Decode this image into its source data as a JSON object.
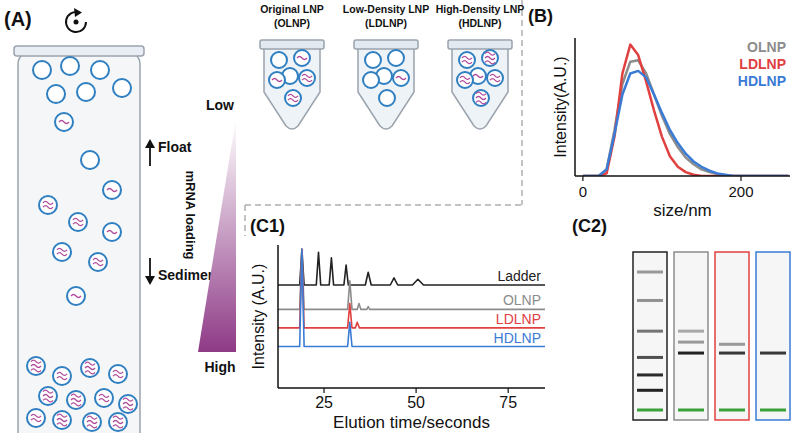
{
  "diagram": {
    "panel": "(A)",
    "arrows": {
      "up": "Float",
      "down": "Sediment"
    },
    "gradient": {
      "label": "mRNA loading",
      "top": "Low",
      "bottom": "High"
    },
    "tubes": [
      {
        "title": "Original LNP",
        "short": "(OLNP)"
      },
      {
        "title": "Low-Density LNP",
        "short": "(LDLNP)"
      },
      {
        "title": "High-Density LNP",
        "short": "(HDLNP)"
      }
    ]
  },
  "gel": {
    "panel": "(C2)"
  },
  "chart_data": [
    {
      "type": "line",
      "panel": "(B)",
      "x_label": "size/nm",
      "y_label": "Intensity(A.U.)",
      "x": [
        0,
        10,
        20,
        30,
        40,
        50,
        60,
        70,
        80,
        90,
        100,
        110,
        120,
        130,
        140,
        150,
        160,
        170,
        180,
        190,
        200,
        210,
        220,
        230,
        240,
        250,
        260
      ],
      "xlim": [
        -10,
        262
      ],
      "xticks": [
        0,
        200
      ],
      "ylim": [
        0,
        1.05
      ],
      "tick_labels": "x",
      "legend": "upper right",
      "series": [
        {
          "name": "OLNP",
          "color": "#8c8c8c",
          "values": [
            0,
            0,
            0,
            0.05,
            0.35,
            0.7,
            0.87,
            0.88,
            0.78,
            0.62,
            0.46,
            0.32,
            0.22,
            0.14,
            0.09,
            0.05,
            0.03,
            0.015,
            0.005,
            0,
            0,
            0,
            0,
            0,
            0,
            0,
            0
          ]
        },
        {
          "name": "LDLNP",
          "color": "#e0403f",
          "values": [
            0,
            0,
            0,
            0.02,
            0.3,
            0.78,
            1.0,
            0.92,
            0.72,
            0.5,
            0.3,
            0.15,
            0.07,
            0.03,
            0.01,
            0,
            0,
            0,
            0,
            0,
            0,
            0,
            0,
            0,
            0,
            0,
            0
          ]
        },
        {
          "name": "HDLNP",
          "color": "#3a7bd5",
          "values": [
            0,
            0,
            0,
            0.05,
            0.32,
            0.62,
            0.78,
            0.8,
            0.75,
            0.62,
            0.48,
            0.35,
            0.25,
            0.17,
            0.11,
            0.07,
            0.04,
            0.02,
            0.01,
            0,
            0,
            0,
            0,
            0,
            0,
            0,
            0
          ]
        }
      ]
    },
    {
      "type": "line",
      "panel": "(C1)",
      "x_label": "Elution time/seconds",
      "y_label": "Intensity (A.U.)",
      "xlim": [
        12.5,
        85
      ],
      "xticks": [
        25,
        50,
        75
      ],
      "ylim": [
        0,
        100
      ],
      "tick_labels": "x",
      "series": [
        {
          "name": "Ladder",
          "color": "#222222",
          "offset": 72,
          "x": [
            12.5,
            18.4,
            19,
            19.6,
            22.9,
            23.5,
            24.1,
            26.4,
            27,
            27.6,
            30.4,
            31,
            31.6,
            36.2,
            37,
            37.8,
            43,
            44,
            45,
            49,
            50.5,
            52,
            85
          ],
          "values": [
            0,
            0,
            25,
            0,
            0,
            23,
            0,
            0,
            19,
            0,
            0,
            14,
            0,
            0,
            9,
            0,
            0,
            5,
            0,
            0,
            4,
            0,
            0
          ]
        },
        {
          "name": "OLNP",
          "color": "#8c8c8c",
          "offset": 55,
          "x": [
            12.5,
            18.4,
            19,
            19.6,
            31.4,
            32,
            32.6,
            34,
            34.5,
            35,
            36.6,
            37,
            37.4,
            85
          ],
          "values": [
            0,
            0,
            42,
            0,
            0,
            20,
            0,
            0,
            4,
            0,
            0,
            2,
            0,
            0
          ]
        },
        {
          "name": "LDLNP",
          "color": "#e0403f",
          "offset": 42,
          "x": [
            12.5,
            18.4,
            19,
            19.6,
            31.4,
            32,
            32.6,
            33.5,
            34,
            34.6,
            85
          ],
          "values": [
            0,
            0,
            55,
            0,
            0,
            17,
            0,
            0,
            4,
            0,
            0
          ]
        },
        {
          "name": "HDLNP",
          "color": "#3a7bd5",
          "offset": 29,
          "x": [
            12.5,
            18.4,
            19,
            19.6,
            31.4,
            32,
            32.6,
            85
          ],
          "values": [
            0,
            0,
            68,
            0,
            0,
            17,
            0,
            0
          ]
        }
      ]
    }
  ]
}
